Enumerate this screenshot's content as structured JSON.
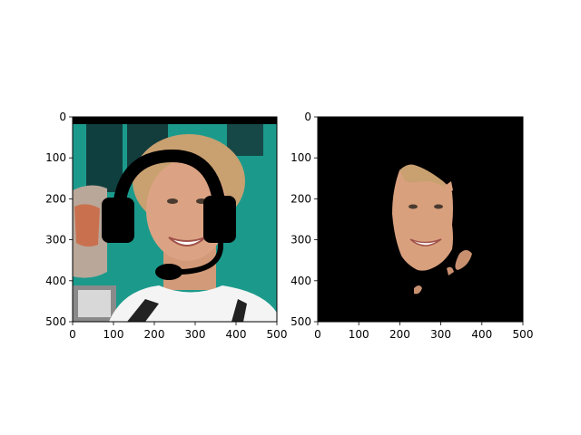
{
  "chart_data": [
    {
      "type": "image",
      "content": "photo of a smiling woman with a black headset (headband, ear cups and microphone) drawn over her head",
      "x_ticks": [
        "0",
        "100",
        "200",
        "300",
        "400",
        "500"
      ],
      "y_ticks": [
        "0",
        "100",
        "200",
        "300",
        "400",
        "500"
      ],
      "xlim": [
        0,
        500
      ],
      "ylim": [
        500,
        0
      ],
      "grid": false
    },
    {
      "type": "image",
      "content": "segmentation mask on black background keeping only the face and a few skin patches",
      "x_ticks": [
        "0",
        "100",
        "200",
        "300",
        "400",
        "500"
      ],
      "y_ticks": [
        "0",
        "100",
        "200",
        "300",
        "400",
        "500"
      ],
      "xlim": [
        0,
        500
      ],
      "ylim": [
        500,
        0
      ],
      "grid": false
    }
  ],
  "colors": {
    "background": "#000000",
    "skin": "#d9a07e",
    "hair": "#c9a070",
    "backdrop_teal": "#1b9a8c",
    "shirt": "#f4f4f4",
    "headset": "#000000"
  }
}
